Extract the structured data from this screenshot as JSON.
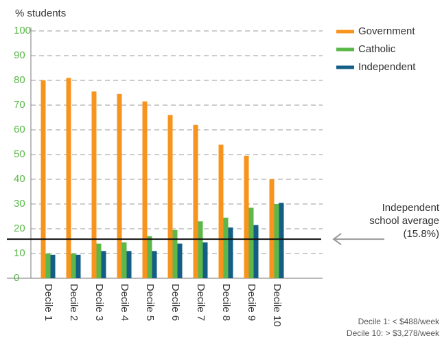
{
  "chart_data": {
    "type": "bar",
    "ylabel": "% students",
    "categories": [
      "Decile 1",
      "Decile 2",
      "Decile 3",
      "Decile 4",
      "Decile 5",
      "Decile 6",
      "Decile 7",
      "Decile 8",
      "Decile 9",
      "Decile 10"
    ],
    "series": [
      {
        "name": "Government",
        "color": "#f7941d",
        "values": [
          80,
          81,
          75.5,
          74.5,
          71.5,
          66,
          62,
          54,
          49.5,
          40
        ]
      },
      {
        "name": "Catholic",
        "color": "#5cb84a",
        "values": [
          10,
          10,
          14,
          14.5,
          17,
          19.5,
          23,
          24.5,
          28.5,
          30
        ]
      },
      {
        "name": "Independent",
        "color": "#135d86",
        "values": [
          9.5,
          9.5,
          11,
          11,
          11,
          14,
          14.5,
          20.5,
          21.5,
          30.5
        ]
      }
    ],
    "ylim": [
      0,
      100
    ],
    "yticks": [
      0,
      10,
      20,
      30,
      40,
      50,
      60,
      70,
      80,
      90,
      100
    ],
    "grid": true,
    "reference_line": {
      "value": 15.8,
      "label": [
        "Independent",
        "school average",
        "(15.8%)"
      ]
    },
    "notes": [
      "Decile 1: < $488/week",
      "Decile 10: > $3,278/week"
    ],
    "legend": "upper right"
  }
}
